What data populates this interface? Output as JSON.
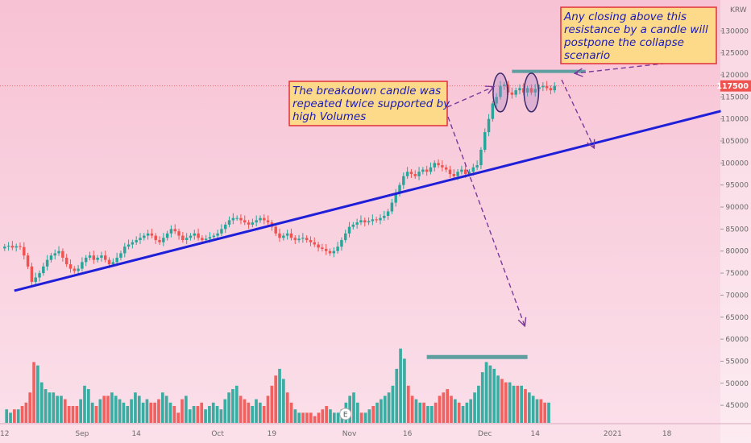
{
  "chart_data": {
    "type": "candlestick",
    "currency": "KRW",
    "last_price": 117500,
    "last_price_label": "117500",
    "y_ticks": [
      45000,
      50000,
      55000,
      60000,
      65000,
      70000,
      75000,
      80000,
      85000,
      90000,
      95000,
      100000,
      105000,
      110000,
      115000,
      120000,
      125000,
      130000
    ],
    "y_tick_labels": [
      "45000",
      "50000",
      "55000",
      "60000",
      "65000",
      "70000",
      "75000",
      "80000",
      "85000",
      "90000",
      "95000",
      "100000",
      "105000",
      "110000",
      "115000",
      "120000",
      "125000",
      "130000"
    ],
    "ylim": [
      41000,
      137000
    ],
    "x_tick_labels": [
      "12",
      "Sep",
      "14",
      "Oct",
      "19",
      "Nov",
      "16",
      "Dec",
      "14",
      "2021",
      "18"
    ],
    "x_tick_sessions": [
      0,
      20,
      34,
      55,
      69,
      89,
      104,
      124,
      137,
      157,
      171
    ],
    "session_range": [
      -1.2,
      184.6
    ],
    "earnings_marker": "E",
    "earnings_session": 88,
    "close_series": [
      81000,
      81200,
      80800,
      81100,
      80900,
      79000,
      76500,
      73000,
      74000,
      75000,
      76500,
      78000,
      79000,
      79500,
      80000,
      78500,
      77000,
      76000,
      75500,
      76000,
      77500,
      78500,
      79000,
      78000,
      78500,
      79000,
      78000,
      77000,
      77500,
      78500,
      79500,
      81000,
      81500,
      82000,
      82500,
      83000,
      83500,
      84000,
      83500,
      82500,
      82000,
      83000,
      84000,
      85000,
      84500,
      83500,
      82500,
      83000,
      83500,
      84000,
      83000,
      82500,
      82800,
      83200,
      83500,
      84000,
      85000,
      86000,
      87000,
      87500,
      87500,
      87000,
      86500,
      86000,
      86500,
      87000,
      87500,
      87000,
      86500,
      85500,
      84000,
      83000,
      83500,
      84000,
      83000,
      82500,
      82800,
      83000,
      82500,
      82000,
      81500,
      80800,
      80500,
      80000,
      79500,
      80000,
      81000,
      82500,
      84000,
      85500,
      86000,
      86500,
      87000,
      86500,
      86800,
      87200,
      87000,
      87500,
      88000,
      89000,
      91000,
      93000,
      95000,
      97000,
      98000,
      97500,
      97000,
      98000,
      98500,
      98000,
      99000,
      100000,
      99500,
      99000,
      98500,
      97500,
      97000,
      98000,
      98500,
      97500,
      98000,
      99000,
      99500,
      103000,
      107000,
      110000,
      113500,
      115000,
      117500,
      117800,
      116000,
      115500,
      116500,
      117000,
      116000,
      117000,
      116000,
      116800,
      117200,
      117500,
      117000,
      116500,
      117500
    ],
    "volume_series": [
      48,
      47,
      48,
      48,
      49,
      50,
      53,
      62,
      61,
      56,
      54,
      53,
      53,
      52,
      52,
      51,
      49,
      49,
      49,
      51,
      55,
      54,
      50,
      49,
      51,
      52,
      52,
      53,
      52,
      51,
      50,
      49,
      51,
      53,
      52,
      50,
      51,
      50,
      50,
      51,
      53,
      52,
      50,
      49,
      47,
      51,
      52,
      48,
      49,
      49,
      50,
      48,
      49,
      50,
      49,
      48,
      51,
      53,
      54,
      55,
      52,
      51,
      50,
      49,
      51,
      50,
      49,
      52,
      55,
      58,
      60,
      57,
      53,
      50,
      48,
      47,
      47,
      47,
      47,
      46,
      47,
      48,
      49,
      48,
      47,
      47,
      48,
      50,
      52,
      53,
      50,
      47,
      47,
      48,
      49,
      50,
      51,
      52,
      53,
      55,
      60,
      66,
      63,
      55,
      52,
      51,
      50,
      50,
      49,
      49,
      50,
      52,
      53,
      54,
      52,
      51,
      50,
      49,
      50,
      51,
      53,
      55,
      59,
      62,
      61,
      60,
      58,
      57,
      56,
      56,
      55,
      55,
      55,
      54,
      53,
      52,
      51,
      51,
      50,
      50
    ],
    "volume_axis": [
      44,
      75
    ],
    "volume_bar_band": [
      0,
      141
    ],
    "trendline_sessions": [
      2.5,
      185
    ],
    "trendline_prices": [
      71000,
      111800
    ],
    "resistance": {
      "price": 120800,
      "sessions": [
        131,
        150
      ]
    },
    "volume_level": {
      "value": 63.5,
      "sessions": [
        109,
        135
      ]
    },
    "highlight_sessions": [
      128,
      136
    ],
    "highlight_price": 116000,
    "annotations": [
      {
        "lines": [
          "The breakdown candle was",
          "repeated twice supported by",
          "high Volumes"
        ]
      },
      {
        "lines": [
          "Any closing above this",
          "resistance by a candle will",
          "postpone the collapse",
          "scenario"
        ]
      }
    ],
    "colors": {
      "up": "#26a69a",
      "down": "#ef5350",
      "trendline": "#1f1fd8",
      "level": "#5f9ea0",
      "arrow": "#7a3a9a",
      "background_top": "#f7c6d6",
      "background_bottom": "#fadbe6",
      "price_tag": "#ef5350"
    }
  }
}
